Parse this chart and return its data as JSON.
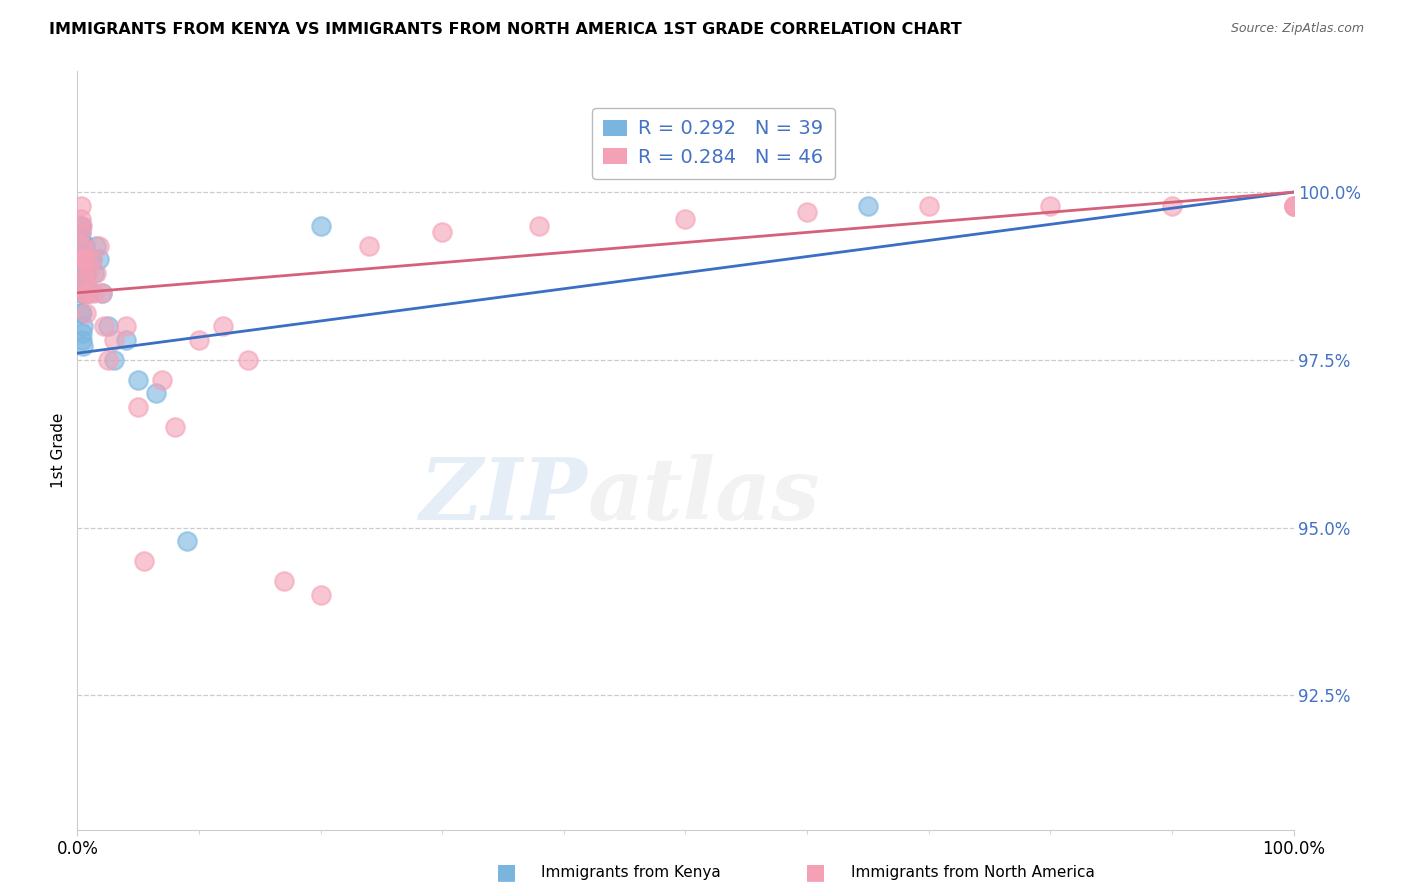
{
  "title": "IMMIGRANTS FROM KENYA VS IMMIGRANTS FROM NORTH AMERICA 1ST GRADE CORRELATION CHART",
  "source": "Source: ZipAtlas.com",
  "ylabel": "1st Grade",
  "ytick_values": [
    92.5,
    95.0,
    97.5,
    100.0
  ],
  "xlim": [
    0,
    100
  ],
  "ylim": [
    90.5,
    101.8
  ],
  "legend_label1": "Immigrants from Kenya",
  "legend_label2": "Immigrants from North America",
  "R1": 0.292,
  "N1": 39,
  "R2": 0.284,
  "N2": 46,
  "color_blue": "#7ab5e0",
  "color_pink": "#f4a0b5",
  "color_blue_line": "#3a6fc4",
  "color_pink_line": "#d4607a",
  "watermark_zip": "ZIP",
  "watermark_atlas": "atlas",
  "kenya_x": [
    0.3,
    0.3,
    0.3,
    0.3,
    0.3,
    0.3,
    0.3,
    0.3,
    0.3,
    0.3,
    0.4,
    0.4,
    0.4,
    0.4,
    0.4,
    0.5,
    0.5,
    0.5,
    0.5,
    0.6,
    0.6,
    0.7,
    0.7,
    0.8,
    0.8,
    1.0,
    1.2,
    1.4,
    1.5,
    1.8,
    2.0,
    2.5,
    3.0,
    4.0,
    5.0,
    6.5,
    9.0,
    20.0,
    65.0
  ],
  "kenya_y": [
    99.5,
    99.5,
    99.4,
    99.3,
    99.2,
    99.1,
    99.0,
    98.8,
    98.5,
    98.2,
    98.7,
    98.5,
    98.2,
    97.9,
    97.8,
    99.0,
    98.5,
    98.0,
    97.7,
    99.2,
    98.8,
    98.8,
    98.5,
    99.0,
    98.6,
    98.5,
    99.0,
    98.8,
    99.2,
    99.0,
    98.5,
    98.0,
    97.5,
    97.8,
    97.2,
    97.0,
    94.8,
    99.5,
    99.8
  ],
  "na_x": [
    0.3,
    0.3,
    0.3,
    0.3,
    0.3,
    0.4,
    0.4,
    0.4,
    0.5,
    0.5,
    0.6,
    0.6,
    0.7,
    0.7,
    0.8,
    0.8,
    1.0,
    1.2,
    1.4,
    1.5,
    1.8,
    2.0,
    2.2,
    2.5,
    3.0,
    4.0,
    5.0,
    5.5,
    7.0,
    8.0,
    10.0,
    12.0,
    14.0,
    17.0,
    20.0,
    24.0,
    30.0,
    38.0,
    50.0,
    60.0,
    70.0,
    80.0,
    90.0,
    100.0,
    100.0,
    100.0
  ],
  "na_y": [
    99.8,
    99.6,
    99.4,
    99.2,
    99.0,
    99.5,
    99.2,
    99.0,
    98.8,
    98.5,
    99.0,
    98.7,
    98.5,
    98.2,
    99.0,
    98.5,
    98.8,
    99.0,
    98.5,
    98.8,
    99.2,
    98.5,
    98.0,
    97.5,
    97.8,
    98.0,
    96.8,
    94.5,
    97.2,
    96.5,
    97.8,
    98.0,
    97.5,
    94.2,
    94.0,
    99.2,
    99.4,
    99.5,
    99.6,
    99.7,
    99.8,
    99.8,
    99.8,
    99.8,
    99.8,
    99.8
  ],
  "trendline_blue_x0": 0,
  "trendline_blue_y0": 97.6,
  "trendline_blue_x1": 100,
  "trendline_blue_y1": 100.0,
  "trendline_pink_x0": 0,
  "trendline_pink_y0": 98.5,
  "trendline_pink_x1": 100,
  "trendline_pink_y1": 100.0
}
